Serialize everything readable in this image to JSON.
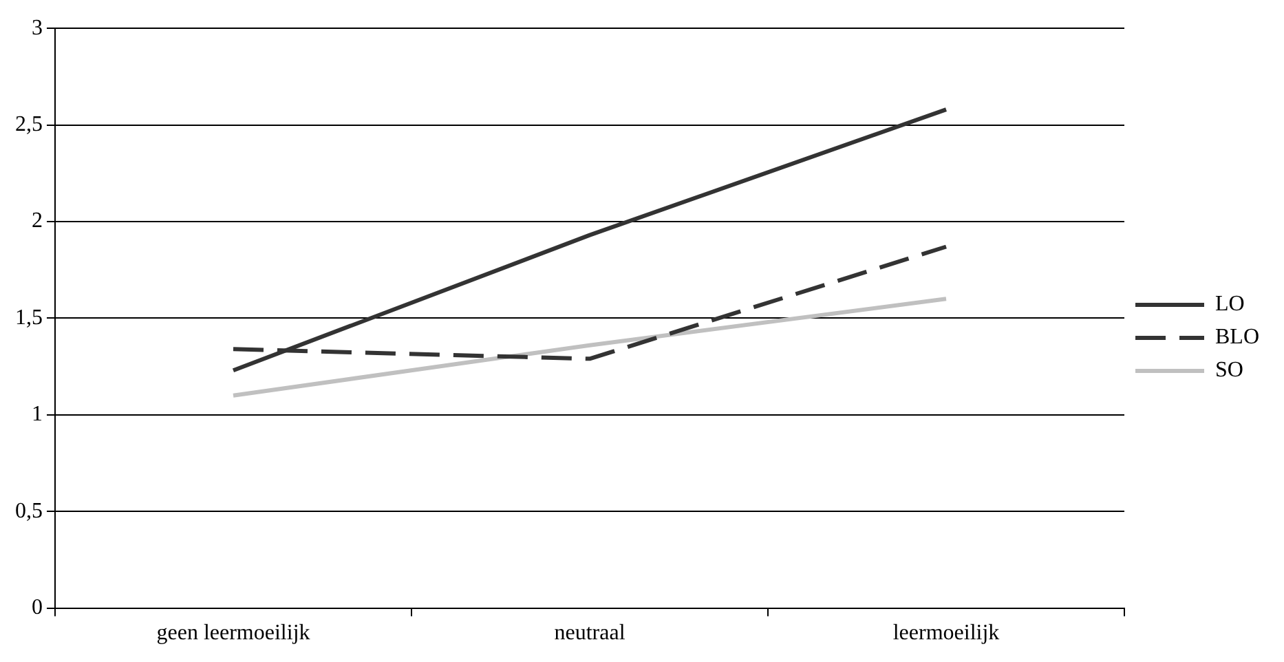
{
  "chart_data": {
    "type": "line",
    "categories": [
      "geen leermoeilijk",
      "neutraal",
      "leermoeilijk"
    ],
    "series": [
      {
        "name": "LO",
        "color": "#333333",
        "values": [
          1.23,
          1.93,
          2.58
        ],
        "line_style": "solid"
      },
      {
        "name": "BLO",
        "color": "#333333",
        "values": [
          1.34,
          1.29,
          1.87
        ],
        "line_style": "dashed"
      },
      {
        "name": "SO",
        "color": "#c0c0c0",
        "values": [
          1.1,
          1.36,
          1.6
        ],
        "line_style": "solid"
      }
    ],
    "ylim": [
      0,
      3
    ],
    "yticks": [
      0,
      {
        "value": 0.5,
        "label": "0,5"
      },
      1,
      {
        "value": 1.5,
        "label": "1,5"
      },
      2,
      {
        "value": 2.5,
        "label": "2,5"
      },
      3
    ],
    "grid": "y",
    "legend": "right",
    "marker": "none"
  }
}
